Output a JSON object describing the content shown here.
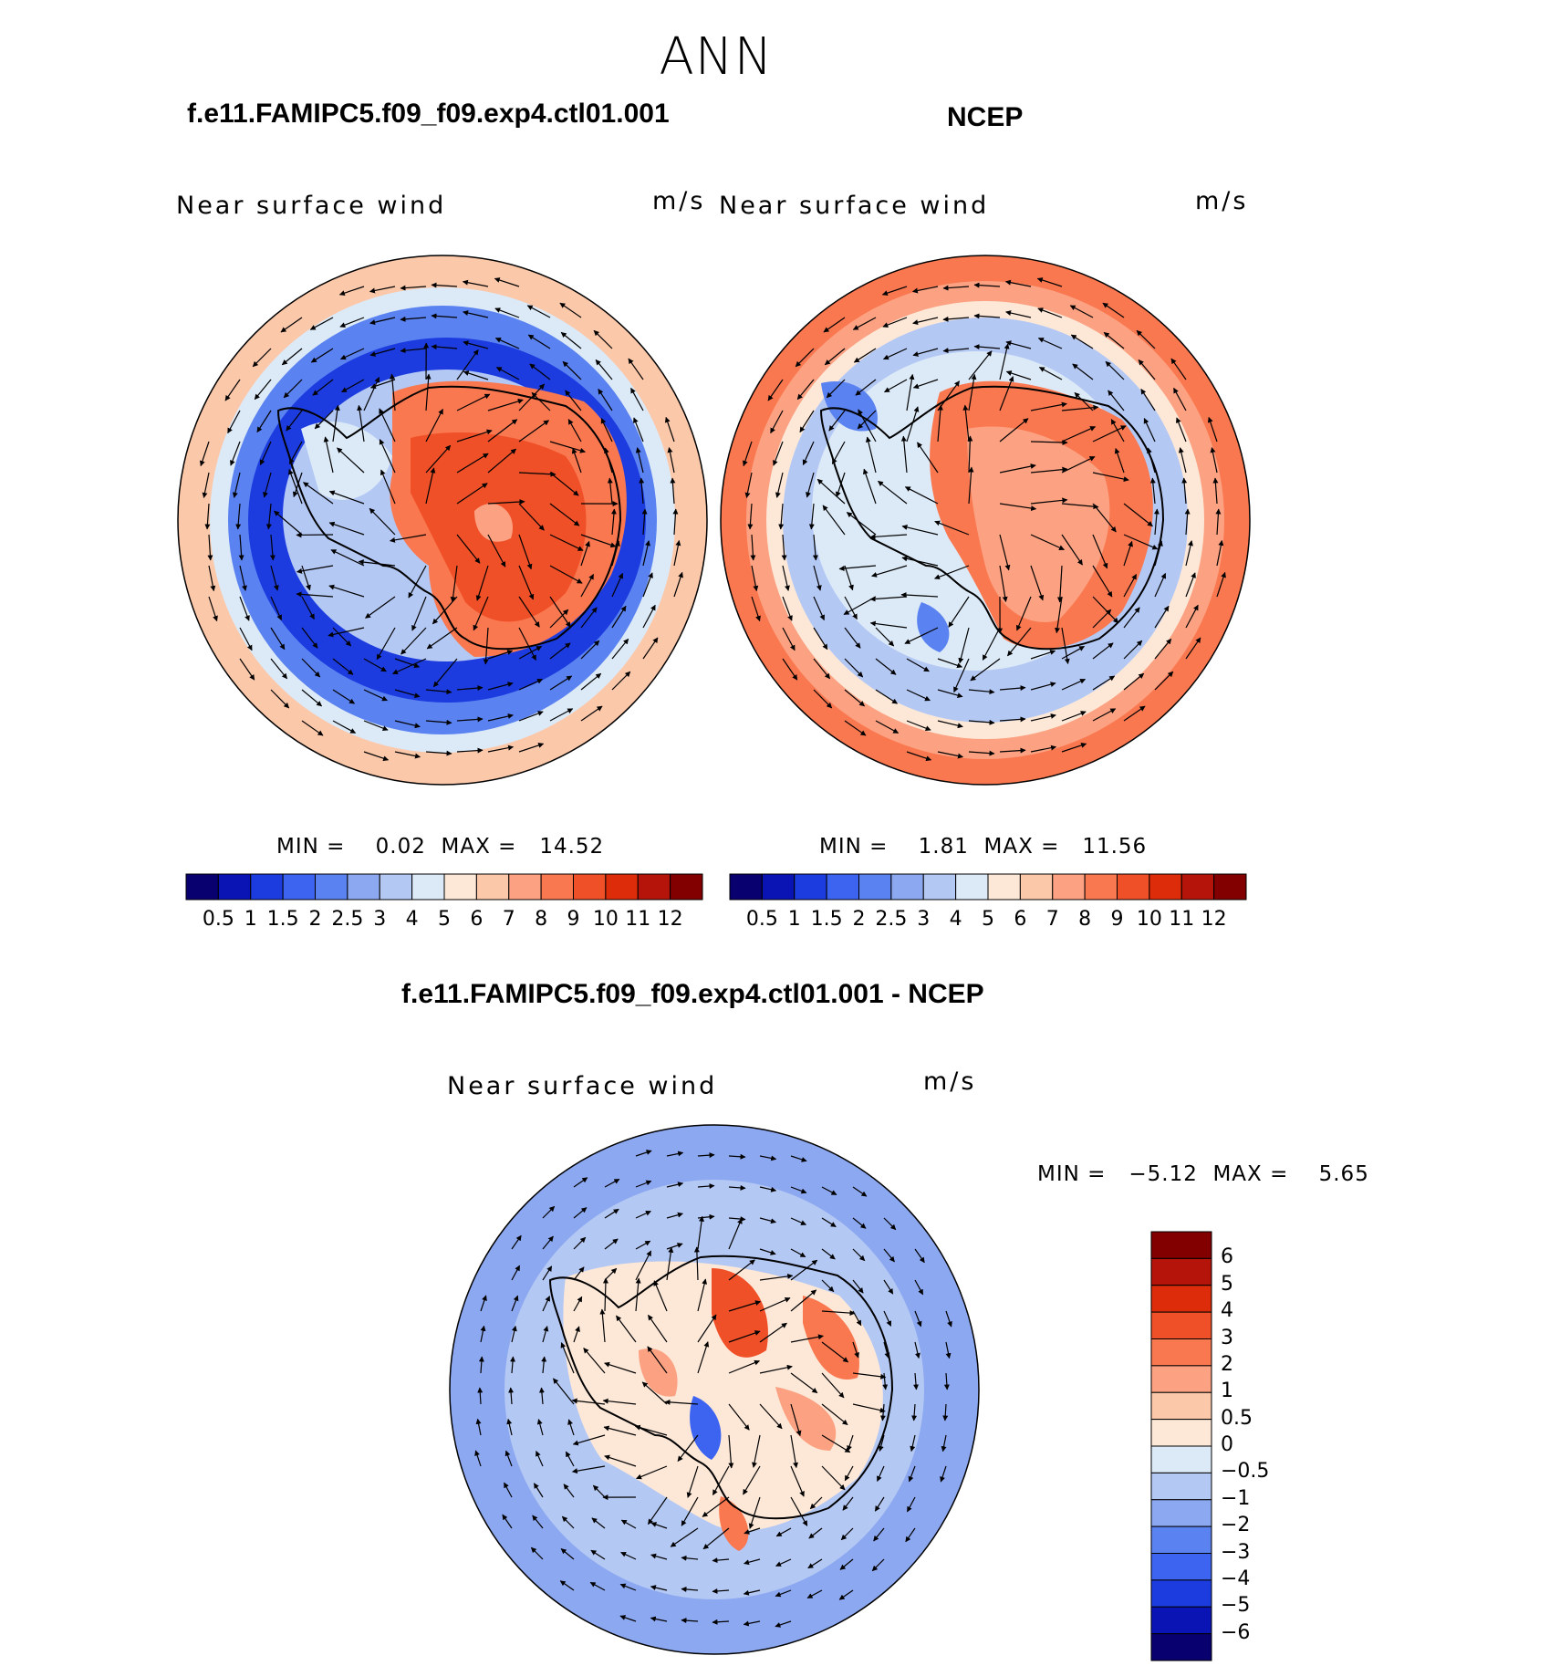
{
  "season": "ANN",
  "titles": {
    "model": "f.e11.FAMIPC5.f09_f09.exp4.ctl01.001",
    "obs": "NCEP",
    "diff": "f.e11.FAMIPC5.f09_f09.exp4.ctl01.001 - NCEP"
  },
  "panels": [
    {
      "varname": "Near surface wind",
      "units": "m/s",
      "minmax": "MIN =    0.02  MAX =   14.52"
    },
    {
      "varname": "Near surface wind",
      "units": "m/s",
      "minmax": "MIN =    1.81  MAX =   11.56"
    },
    {
      "varname": "Near surface wind",
      "units": "m/s",
      "minmax": "MIN =   −5.12  MAX =    5.65"
    }
  ],
  "colorbar_abs": {
    "labels": [
      "0.5",
      "1",
      "1.5",
      "2",
      "2.5",
      "3",
      "4",
      "5",
      "6",
      "7",
      "8",
      "9",
      "10",
      "11",
      "12"
    ],
    "colors": [
      "#08006e",
      "#0a14b4",
      "#1c3ce0",
      "#3c64f0",
      "#5a82f0",
      "#8ca8f0",
      "#b4c8f4",
      "#dceaf8",
      "#fde8d8",
      "#fcc8aa",
      "#fca282",
      "#fa7850",
      "#f05028",
      "#dc2c0a",
      "#b4140a",
      "#820000"
    ]
  },
  "colorbar_diff": {
    "labels": [
      "6",
      "5",
      "4",
      "3",
      "2",
      "1",
      "0.5",
      "0",
      "−0.5",
      "−1",
      "−2",
      "−3",
      "−4",
      "−5",
      "−6"
    ],
    "colors": [
      "#820000",
      "#b4140a",
      "#dc2c0a",
      "#f05028",
      "#fa7850",
      "#fca282",
      "#fcc8aa",
      "#fde8d8",
      "#dceaf8",
      "#b4c8f4",
      "#8ca8f0",
      "#5a82f0",
      "#3c64f0",
      "#1c3ce0",
      "#0a14b4",
      "#08006e"
    ]
  },
  "colors": {
    "ocean_ring_model": "#fcc8aa",
    "dark_blue": "#1c3ce0",
    "light_blue": "#b4c8f4",
    "orange": "#f05028",
    "coast": "#000000"
  }
}
